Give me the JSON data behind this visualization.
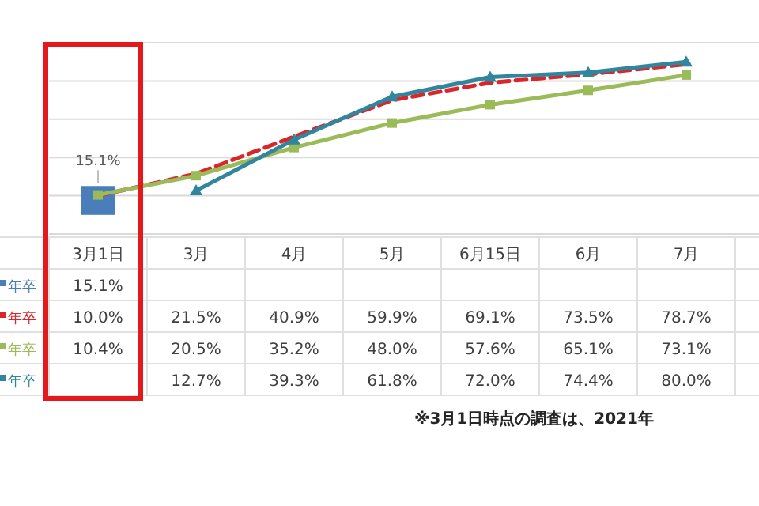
{
  "chart_data": {
    "type": "line",
    "categories": [
      "3月1日",
      "3月",
      "4月",
      "5月",
      "6月15日",
      "6月",
      "7月"
    ],
    "ylim": [
      -10,
      90
    ],
    "yticks": [
      {
        "value": -10,
        "label": null
      },
      {
        "value": 10,
        "label": null
      },
      {
        "value": 30,
        "label": null
      },
      {
        "value": 50,
        "label": null
      },
      {
        "value": 70,
        "label": null
      },
      {
        "value": 90,
        "label": null
      }
    ],
    "grid": "y",
    "tick_labels": "x",
    "data_labels": true,
    "series": [
      {
        "name": "年卒",
        "type": "bar",
        "color": "#4a7ebb",
        "values": [
          15.1,
          null,
          null,
          null,
          null,
          null,
          null
        ],
        "value_labels": [
          "15.1%",
          null,
          null,
          null,
          null,
          null,
          null
        ]
      },
      {
        "name": "年卒",
        "color": "#d9262b",
        "line_style": "dashed",
        "marker": "none",
        "values": [
          10.0,
          21.5,
          40.9,
          59.9,
          69.1,
          73.5,
          78.7
        ],
        "value_labels": [
          "10.0%",
          "21.5%",
          "40.9%",
          "59.9%",
          "69.1%",
          "73.5%",
          "78.7%"
        ]
      },
      {
        "name": "年卒",
        "color": "#9bbb59",
        "line_style": "solid",
        "marker": "square",
        "values": [
          10.4,
          20.5,
          35.2,
          48.0,
          57.6,
          65.1,
          73.1
        ],
        "value_labels": [
          "10.4%",
          "20.5%",
          "35.2%",
          "48.0%",
          "57.6%",
          "65.1%",
          "73.1%"
        ]
      },
      {
        "name": "年卒",
        "color": "#31859c",
        "line_style": "solid",
        "marker": "triangle",
        "values": [
          null,
          12.7,
          39.3,
          61.8,
          72.0,
          74.4,
          80.0
        ],
        "value_labels": [
          null,
          "12.7%",
          "39.3%",
          "61.8%",
          "72.0%",
          "74.4%",
          "80.0%"
        ]
      }
    ],
    "annotations": [
      "※3月1日時点の調査は、2021年"
    ]
  }
}
